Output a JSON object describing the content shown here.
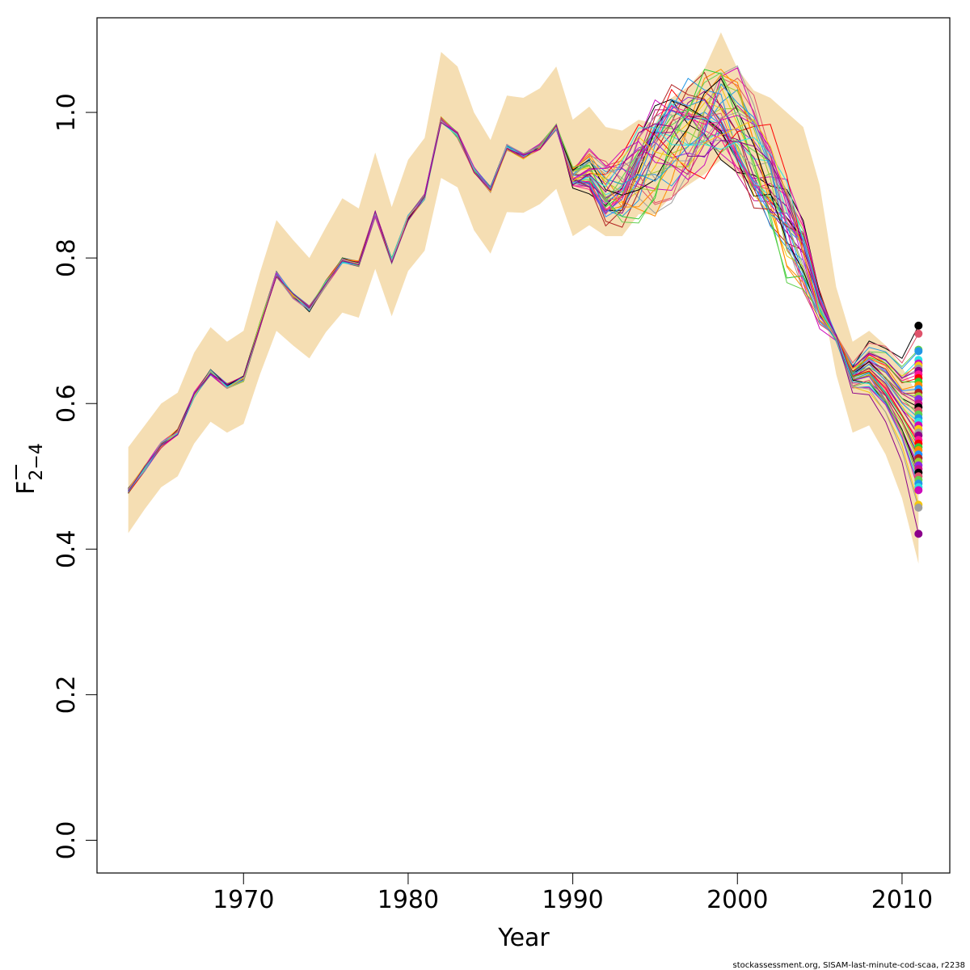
{
  "chart_data": {
    "type": "line",
    "xlabel": "Year",
    "ylabel": "F",
    "ylabel_subscript": "2−4",
    "xlim": [
      1961.1,
      2012.9
    ],
    "ylim": [
      -0.045,
      1.13
    ],
    "x_ticks": [
      1970,
      1980,
      1990,
      2000,
      2010
    ],
    "y_ticks": [
      0.0,
      0.2,
      0.4,
      0.6,
      0.8,
      1.0
    ],
    "x_tick_labels": [
      "1970",
      "1980",
      "1990",
      "2000",
      "2010"
    ],
    "y_tick_labels": [
      "0.0",
      "0.2",
      "0.4",
      "0.6",
      "0.8",
      "1.0"
    ],
    "grid": false,
    "legend": "none",
    "band_color": "#F5DEB3",
    "series_colors": [
      "#000000",
      "#DF536B",
      "#61D04F",
      "#2297E6",
      "#28E2E5",
      "#CD0BBC",
      "#F5C710",
      "#9E9E9E",
      "#8B008B",
      "#FF1493",
      "#FF0000",
      "#32CD32",
      "#FF8C00",
      "#1E90FF",
      "#B22222",
      "#9ACD32",
      "#8A2BE2",
      "#C71585"
    ],
    "confidence_band": {
      "x": [
        1963,
        1964,
        1965,
        1966,
        1967,
        1968,
        1969,
        1970,
        1971,
        1972,
        1973,
        1974,
        1975,
        1976,
        1977,
        1978,
        1979,
        1980,
        1981,
        1982,
        1983,
        1984,
        1985,
        1986,
        1987,
        1988,
        1989,
        1990,
        1991,
        1992,
        1993,
        1994,
        1995,
        1996,
        1997,
        1998,
        1999,
        2000,
        2001,
        2002,
        2003,
        2004,
        2005,
        2006,
        2007,
        2008,
        2009,
        2010,
        2011
      ],
      "upper": [
        0.54,
        0.57,
        0.6,
        0.615,
        0.67,
        0.705,
        0.685,
        0.7,
        0.78,
        0.852,
        0.825,
        0.8,
        0.842,
        0.882,
        0.868,
        0.945,
        0.87,
        0.935,
        0.965,
        1.083,
        1.063,
        1.0,
        0.962,
        1.023,
        1.02,
        1.033,
        1.063,
        0.99,
        1.008,
        0.98,
        0.975,
        0.99,
        0.985,
        1.02,
        1.035,
        1.06,
        1.11,
        1.06,
        1.03,
        1.02,
        1.0,
        0.98,
        0.9,
        0.76,
        0.685,
        0.7,
        0.68,
        0.65,
        0.61
      ],
      "lower": [
        0.422,
        0.455,
        0.485,
        0.5,
        0.545,
        0.575,
        0.56,
        0.572,
        0.64,
        0.7,
        0.68,
        0.662,
        0.698,
        0.725,
        0.718,
        0.785,
        0.72,
        0.782,
        0.81,
        0.91,
        0.897,
        0.838,
        0.806,
        0.863,
        0.862,
        0.874,
        0.895,
        0.83,
        0.845,
        0.83,
        0.83,
        0.86,
        0.86,
        0.885,
        0.9,
        0.915,
        0.935,
        0.915,
        0.895,
        0.875,
        0.86,
        0.84,
        0.76,
        0.64,
        0.56,
        0.57,
        0.53,
        0.47,
        0.38
      ]
    },
    "mean_series": {
      "x": [
        1963,
        1964,
        1965,
        1966,
        1967,
        1968,
        1969,
        1970,
        1971,
        1972,
        1973,
        1974,
        1975,
        1976,
        1977,
        1978,
        1979,
        1980,
        1981,
        1982,
        1983,
        1984,
        1985,
        1986,
        1987,
        1988,
        1989,
        1990,
        1991,
        1992,
        1993,
        1994,
        1995,
        1996,
        1997,
        1998,
        1999,
        2000,
        2001,
        2002,
        2003,
        2004,
        2005,
        2006,
        2007,
        2008,
        2009,
        2010
      ],
      "y": [
        0.48,
        0.511,
        0.543,
        0.561,
        0.612,
        0.643,
        0.624,
        0.634,
        0.708,
        0.778,
        0.748,
        0.73,
        0.765,
        0.797,
        0.792,
        0.86,
        0.796,
        0.855,
        0.884,
        0.99,
        0.969,
        0.921,
        0.894,
        0.952,
        0.94,
        0.953,
        0.98,
        0.91,
        0.92,
        0.895,
        0.9,
        0.925,
        0.94,
        0.955,
        0.965,
        0.985,
        1.0,
        0.985,
        0.95,
        0.91,
        0.85,
        0.8,
        0.73,
        0.69,
        0.64,
        0.655,
        0.64,
        0.61
      ]
    },
    "final_year": 2011,
    "final_year_values": [
      0.707,
      0.696,
      0.674,
      0.672,
      0.66,
      0.655,
      0.652,
      0.648,
      0.645,
      0.64,
      0.635,
      0.63,
      0.625,
      0.62,
      0.615,
      0.61,
      0.606,
      0.6,
      0.595,
      0.59,
      0.585,
      0.58,
      0.575,
      0.57,
      0.565,
      0.56,
      0.556,
      0.55,
      0.545,
      0.54,
      0.536,
      0.53,
      0.525,
      0.52,
      0.515,
      0.51,
      0.505,
      0.5,
      0.495,
      0.49,
      0.485,
      0.481,
      0.461,
      0.457,
      0.421
    ]
  },
  "footer": "stockassessment.org, SISAM-last-minute-cod-scaa, r2238"
}
